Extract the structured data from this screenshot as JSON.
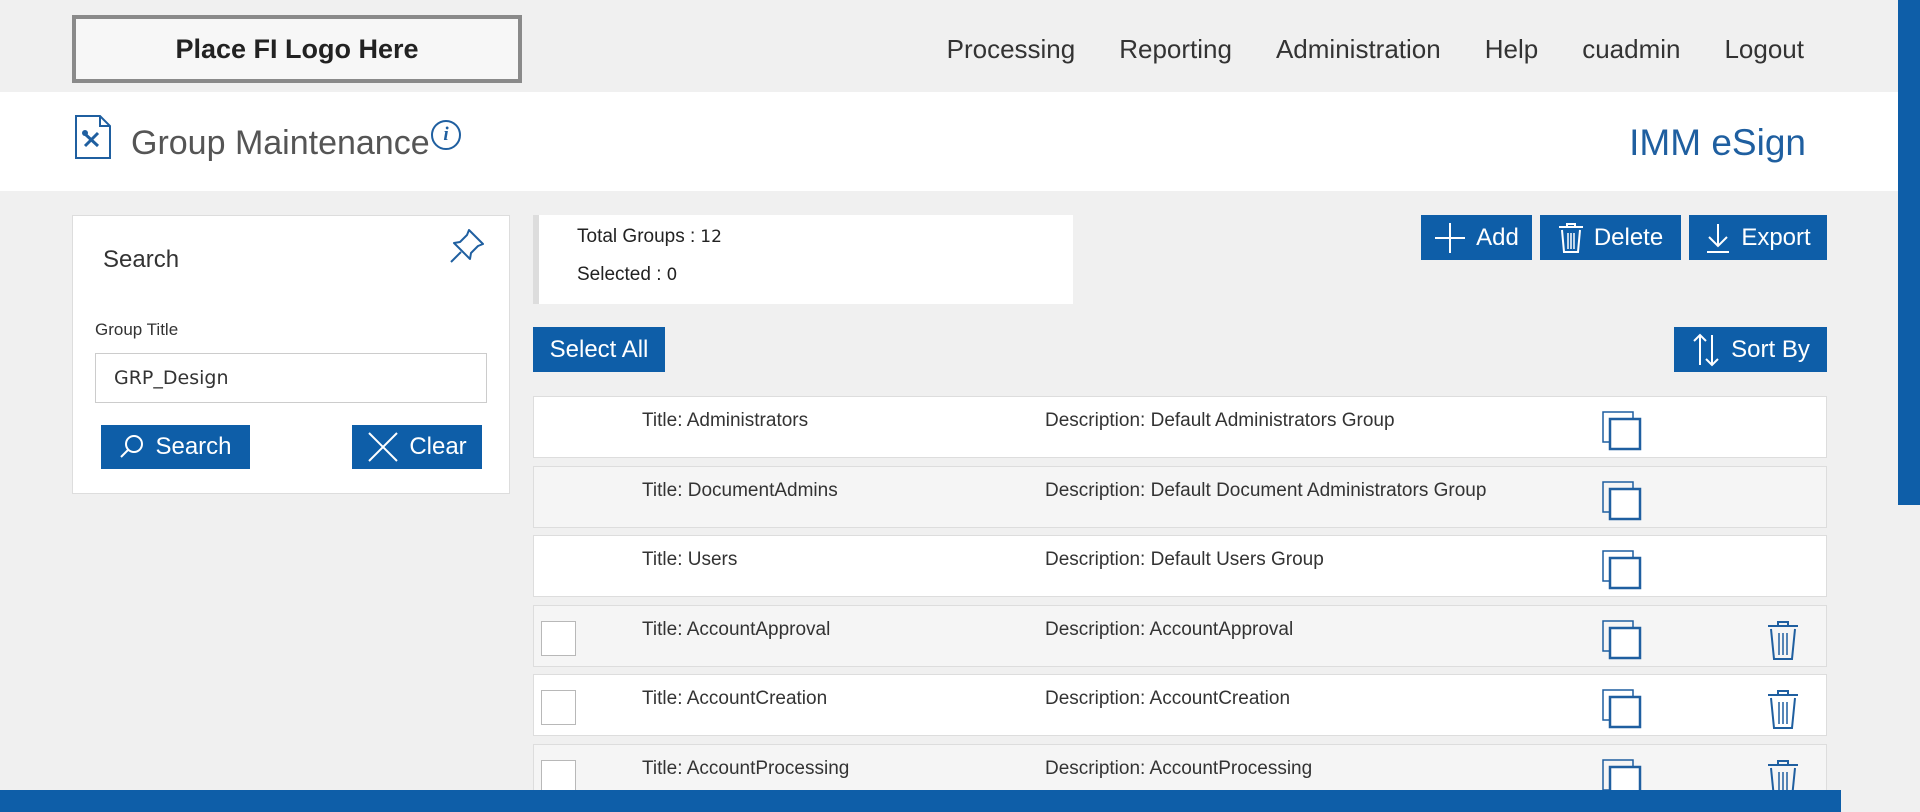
{
  "logo": {
    "text": "Place FI Logo Here"
  },
  "nav": {
    "processing": "Processing",
    "reporting": "Reporting",
    "administration": "Administration",
    "help": "Help",
    "user": "cuadmin",
    "logout": "Logout"
  },
  "header": {
    "title": "Group Maintenance",
    "info_symbol": "i",
    "app_name": "IMM eSign"
  },
  "search": {
    "heading": "Search",
    "field_label": "Group Title",
    "field_value": "GRP_Design",
    "search_button": "Search",
    "clear_button": "Clear"
  },
  "summary": {
    "total_label": "Total Groups :",
    "total_value": "12",
    "selected_label": "Selected :",
    "selected_value": "0"
  },
  "actions": {
    "add": "Add",
    "delete": "Delete",
    "export": "Export",
    "select_all": "Select All",
    "sort_by": "Sort By"
  },
  "rows": [
    {
      "title": "Title:  Administrators",
      "description": "Description: Default Administrators Group",
      "selectable": false,
      "deletable": false
    },
    {
      "title": "Title:  DocumentAdmins",
      "description": "Description: Default Document Administrators Group",
      "selectable": false,
      "deletable": false
    },
    {
      "title": "Title:  Users",
      "description": "Description: Default Users Group",
      "selectable": false,
      "deletable": false
    },
    {
      "title": "Title:  AccountApproval",
      "description": "Description: AccountApproval",
      "selectable": true,
      "deletable": true
    },
    {
      "title": "Title:  AccountCreation",
      "description": "Description: AccountCreation",
      "selectable": true,
      "deletable": true
    },
    {
      "title": "Title:  AccountProcessing",
      "description": "Description: AccountProcessing",
      "selectable": true,
      "deletable": true
    }
  ],
  "colors": {
    "brand": "#0e5ea8",
    "accent_text": "#1f5fa0",
    "background": "#f0f0f0"
  }
}
